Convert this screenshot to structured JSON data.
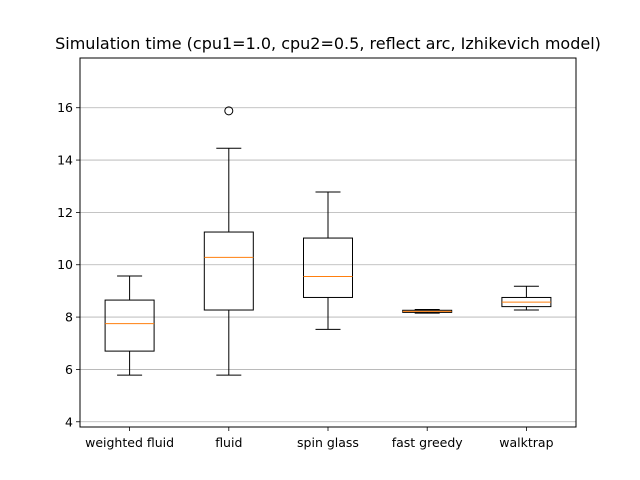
{
  "chart_data": {
    "type": "box",
    "title": "Simulation time (cpu1=1.0, cpu2=0.5, reflect arc, Izhikevich model)",
    "xlabel": "",
    "ylabel": "",
    "ylim": [
      3.8,
      17.9
    ],
    "yticks": [
      4,
      6,
      8,
      10,
      12,
      14,
      16
    ],
    "grid": "y",
    "categories": [
      "weighted fluid",
      "fluid",
      "spin glass",
      "fast greedy",
      "walktrap"
    ],
    "boxes": [
      {
        "whisker_low": 5.78,
        "q1": 6.7,
        "median": 7.75,
        "q3": 8.65,
        "whisker_high": 9.57,
        "outliers": []
      },
      {
        "whisker_low": 5.78,
        "q1": 8.27,
        "median": 10.28,
        "q3": 11.25,
        "whisker_high": 14.45,
        "outliers": [
          15.88
        ]
      },
      {
        "whisker_low": 7.53,
        "q1": 8.75,
        "median": 9.55,
        "q3": 11.02,
        "whisker_high": 12.78,
        "outliers": []
      },
      {
        "whisker_low": 8.15,
        "q1": 8.18,
        "median": 8.22,
        "q3": 8.26,
        "whisker_high": 8.29,
        "outliers": []
      },
      {
        "whisker_low": 8.27,
        "q1": 8.4,
        "median": 8.57,
        "q3": 8.75,
        "whisker_high": 9.18,
        "outliers": []
      }
    ],
    "colors": {
      "box": "#000000",
      "median": "#ff7f0e",
      "grid": "#b0b0b0"
    }
  }
}
